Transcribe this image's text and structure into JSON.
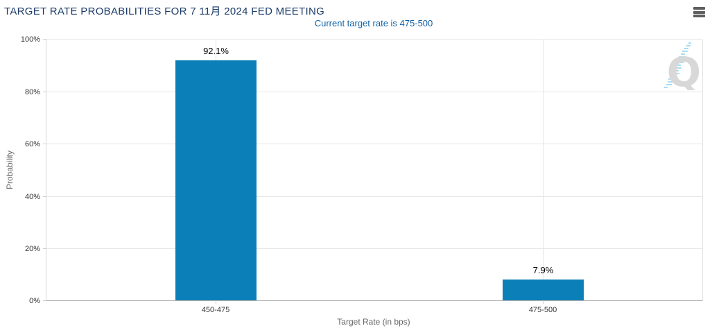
{
  "header": {
    "title": "TARGET RATE PROBABILITIES FOR 7 11月 2024 FED MEETING",
    "subtitle": "Current target rate is 475-500"
  },
  "menu": {
    "icon": "hamburger-icon"
  },
  "chart_data": {
    "type": "bar",
    "title": "TARGET RATE PROBABILITIES FOR 7 11月 2024 FED MEETING",
    "subtitle": "Current target rate is 475-500",
    "categories": [
      "450-475",
      "475-500"
    ],
    "values": [
      92.1,
      7.9
    ],
    "data_labels": [
      "92.1%",
      "7.9%"
    ],
    "xlabel": "Target Rate (in bps)",
    "ylabel": "Probability",
    "ylim": [
      0,
      100
    ],
    "yticks": [
      "0%",
      "20%",
      "40%",
      "60%",
      "80%",
      "100%"
    ],
    "grid": true,
    "legend": false,
    "bar_color": "#0b80b8",
    "watermark_letter": "Q"
  },
  "colors": {
    "title_text": "#1b3a69",
    "subtitle_text": "#0f61a5",
    "bar": "#0b80b8",
    "gridline": "#e6e6e6",
    "axis_line": "#b3b3b3",
    "tick_text": "#333333",
    "axis_title_text": "#666666",
    "data_label_text": "#000000",
    "menu_icon": "#5f5f5f",
    "watermark_gray": "#d8d8d8",
    "watermark_blue": "#a9ddf3"
  }
}
